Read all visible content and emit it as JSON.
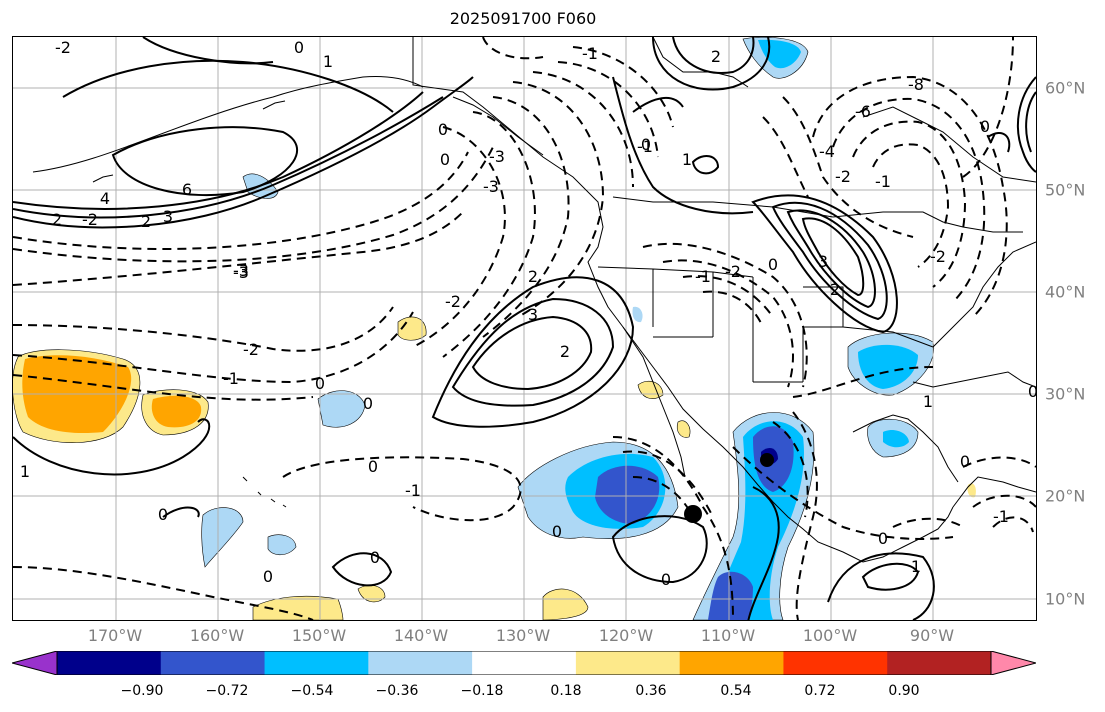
{
  "title": "2025091700 F060",
  "lon_labels": [
    "170°W",
    "160°W",
    "150°W",
    "140°W",
    "130°W",
    "120°W",
    "110°W",
    "100°W",
    "90°W"
  ],
  "lat_labels": [
    "60°N",
    "50°N",
    "40°N",
    "30°N",
    "20°N",
    "10°N"
  ],
  "colorbar": {
    "ticks": [
      "−0.90",
      "−0.72",
      "−0.54",
      "−0.36",
      "−0.18",
      "0.18",
      "0.36",
      "0.54",
      "0.72",
      "0.90"
    ],
    "colors": [
      "#9932cc",
      "#00008b",
      "#3355cc",
      "#00bfff",
      "#add8f5",
      "#ffffff",
      "#fde98a",
      "#ffa500",
      "#ff3300",
      "#b22222",
      "#ff88aa"
    ]
  },
  "contour_labels": [
    "-2",
    "0",
    "1",
    "-1",
    "-3",
    "2",
    "0",
    "0",
    "-3",
    "-1",
    "3",
    "2",
    "-2",
    "2",
    "0",
    "1",
    "-8",
    "-6",
    "-4",
    "4",
    "6",
    "-2",
    "3",
    "2",
    "-3",
    "-1",
    "0",
    "0",
    "3",
    "2",
    "-2",
    "-1",
    "0",
    "-3",
    "-2",
    "0",
    "2",
    "-2",
    "-2",
    "-1",
    "0",
    "1",
    "0",
    "0",
    "0",
    "0",
    "-1",
    "0",
    "1",
    "-1",
    "0",
    "1",
    "0",
    "0"
  ]
}
